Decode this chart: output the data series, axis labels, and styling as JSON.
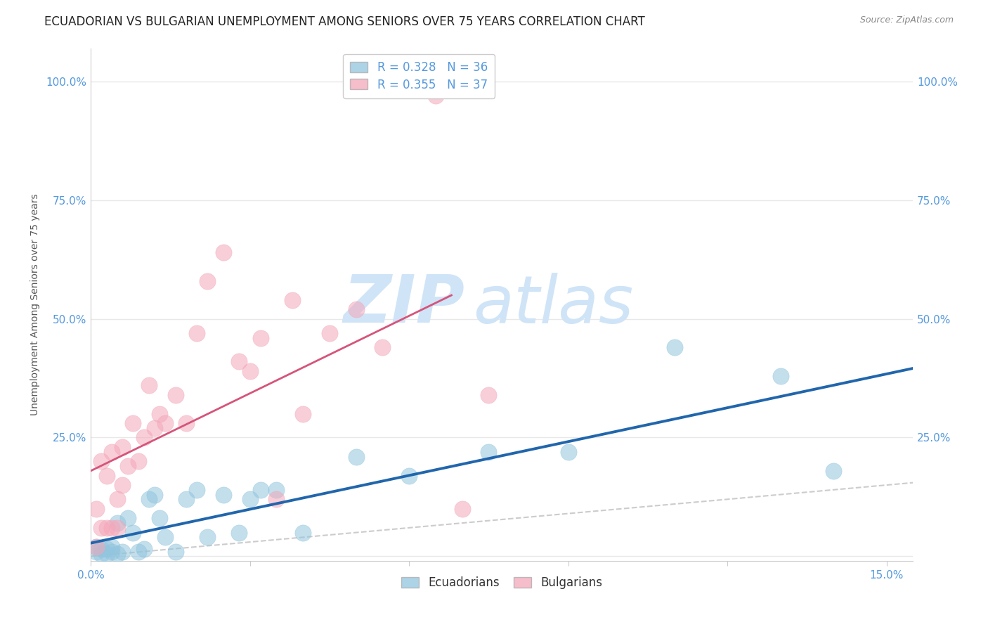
{
  "title": "ECUADORIAN VS BULGARIAN UNEMPLOYMENT AMONG SENIORS OVER 75 YEARS CORRELATION CHART",
  "source": "Source: ZipAtlas.com",
  "ylabel": "Unemployment Among Seniors over 75 years",
  "xlim": [
    0.0,
    0.155
  ],
  "ylim": [
    -0.01,
    1.07
  ],
  "xticks": [
    0.0,
    0.03,
    0.06,
    0.09,
    0.12,
    0.15
  ],
  "yticks": [
    0.0,
    0.25,
    0.5,
    0.75,
    1.0
  ],
  "ytick_labels_left": [
    "",
    "25.0%",
    "50.0%",
    "75.0%",
    "100.0%"
  ],
  "ytick_labels_right": [
    "",
    "25.0%",
    "50.0%",
    "75.0%",
    "100.0%"
  ],
  "xtick_labels": [
    "0.0%",
    "",
    "",
    "",
    "",
    "15.0%"
  ],
  "ecuadorians_R": 0.328,
  "ecuadorians_N": 36,
  "bulgarians_R": 0.355,
  "bulgarians_N": 37,
  "blue_color": "#92c5de",
  "pink_color": "#f4a7b9",
  "blue_line_color": "#2166ac",
  "pink_line_color": "#d6547a",
  "diag_color": "#cccccc",
  "tick_color": "#5599dd",
  "title_fontsize": 12,
  "axis_label_fontsize": 10,
  "watermark_zip": "ZIP",
  "watermark_atlas": "atlas",
  "watermark_color": "#d0e4f7",
  "blue_x": [
    0.001,
    0.001,
    0.002,
    0.002,
    0.003,
    0.003,
    0.004,
    0.004,
    0.005,
    0.005,
    0.006,
    0.007,
    0.008,
    0.009,
    0.01,
    0.011,
    0.012,
    0.013,
    0.014,
    0.016,
    0.018,
    0.02,
    0.022,
    0.025,
    0.028,
    0.03,
    0.032,
    0.035,
    0.04,
    0.05,
    0.06,
    0.075,
    0.09,
    0.11,
    0.13,
    0.14
  ],
  "blue_y": [
    0.02,
    0.01,
    0.015,
    0.005,
    0.015,
    0.005,
    0.02,
    0.01,
    0.07,
    0.005,
    0.01,
    0.08,
    0.05,
    0.01,
    0.015,
    0.12,
    0.13,
    0.08,
    0.04,
    0.01,
    0.12,
    0.14,
    0.04,
    0.13,
    0.05,
    0.12,
    0.14,
    0.14,
    0.05,
    0.21,
    0.17,
    0.22,
    0.22,
    0.44,
    0.38,
    0.18
  ],
  "pink_x": [
    0.001,
    0.001,
    0.002,
    0.002,
    0.003,
    0.003,
    0.004,
    0.004,
    0.005,
    0.005,
    0.006,
    0.006,
    0.007,
    0.008,
    0.009,
    0.01,
    0.011,
    0.012,
    0.013,
    0.014,
    0.016,
    0.018,
    0.02,
    0.022,
    0.025,
    0.028,
    0.03,
    0.032,
    0.035,
    0.038,
    0.04,
    0.045,
    0.05,
    0.055,
    0.065,
    0.07,
    0.075
  ],
  "pink_y": [
    0.02,
    0.1,
    0.06,
    0.2,
    0.06,
    0.17,
    0.06,
    0.22,
    0.06,
    0.12,
    0.15,
    0.23,
    0.19,
    0.28,
    0.2,
    0.25,
    0.36,
    0.27,
    0.3,
    0.28,
    0.34,
    0.28,
    0.47,
    0.58,
    0.64,
    0.41,
    0.39,
    0.46,
    0.12,
    0.54,
    0.3,
    0.47,
    0.52,
    0.44,
    0.97,
    0.1,
    0.34
  ]
}
